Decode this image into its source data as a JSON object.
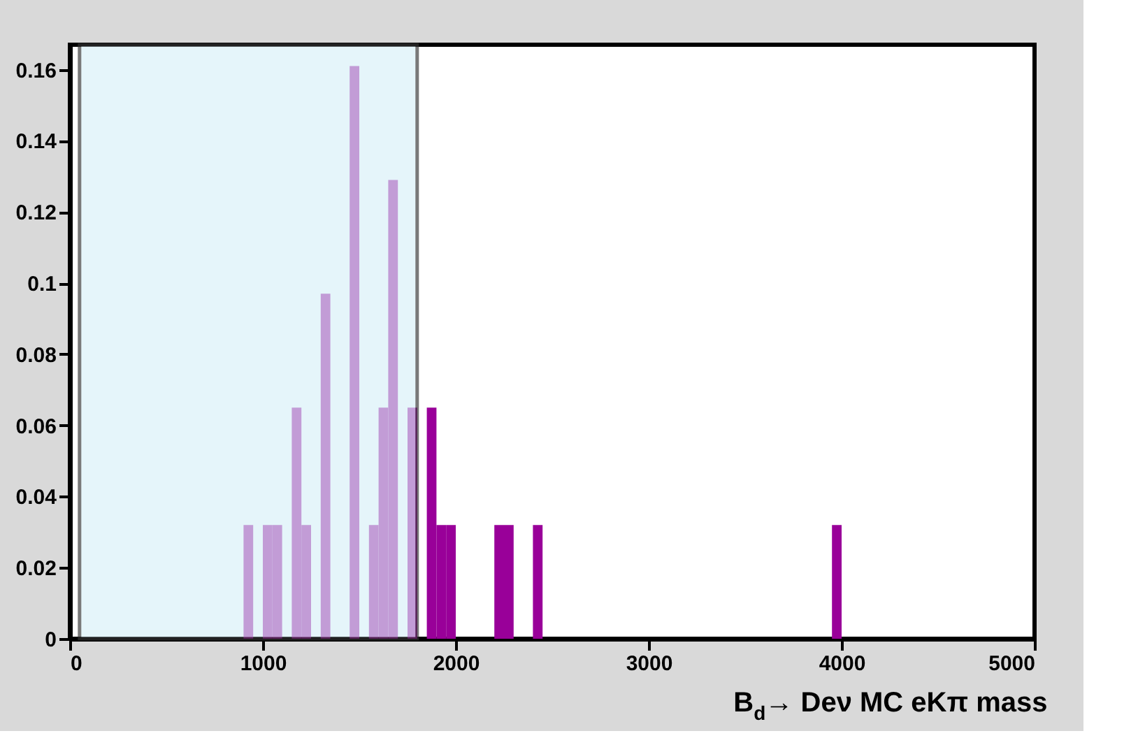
{
  "chart_data": {
    "type": "histogram",
    "xlabel": "B$_{d}$→ Deν MC eKπ mass",
    "bins": [
      0,
      50,
      100,
      150,
      200,
      250,
      300,
      350,
      400,
      450,
      500,
      550,
      600,
      650,
      700,
      750,
      800,
      850,
      900,
      950,
      1000,
      1050,
      1100,
      1150,
      1200,
      1250,
      1300,
      1350,
      1400,
      1450,
      1500,
      1550,
      1600,
      1650,
      1700,
      1750,
      1800,
      1850,
      1900,
      1950,
      2000,
      2050,
      2100,
      2150,
      2200,
      2250,
      2300,
      2350,
      2400,
      2450,
      2500,
      2550,
      2600,
      2650,
      2700,
      2750,
      2800,
      2850,
      2900,
      2950,
      3000,
      3050,
      3100,
      3150,
      3200,
      3250,
      3300,
      3350,
      3400,
      3450,
      3500,
      3550,
      3600,
      3650,
      3700,
      3750,
      3800,
      3850,
      3900,
      3950,
      4000,
      4050,
      4100,
      4150,
      4200,
      4250,
      4300,
      4350,
      4400,
      4450,
      4500,
      4550,
      4600,
      4650,
      4700,
      4750,
      4800,
      4850,
      4900,
      4950,
      5000
    ],
    "values": [
      0,
      0,
      0,
      0,
      0,
      0,
      0,
      0,
      0,
      0,
      0,
      0,
      0,
      0,
      0,
      0,
      0,
      0,
      0.032,
      0,
      0.032,
      0.032,
      0,
      0.065,
      0.032,
      0,
      0.097,
      0,
      0,
      0.161,
      0,
      0.032,
      0.065,
      0.129,
      0,
      0.065,
      0,
      0.065,
      0.032,
      0.032,
      0,
      0,
      0,
      0,
      0.032,
      0.032,
      0,
      0,
      0.032,
      0,
      0,
      0,
      0,
      0,
      0,
      0,
      0,
      0,
      0,
      0,
      0,
      0,
      0,
      0,
      0,
      0,
      0,
      0,
      0,
      0,
      0,
      0,
      0,
      0,
      0,
      0,
      0,
      0,
      0,
      0.032,
      0,
      0,
      0,
      0,
      0,
      0,
      0,
      0,
      0,
      0,
      0,
      0,
      0,
      0,
      0,
      0,
      0,
      0,
      0,
      0
    ],
    "color": "#990099",
    "xlim": [
      0,
      5000
    ],
    "xticks": [
      0,
      1000,
      2000,
      3000,
      4000,
      5000
    ],
    "ylim": [
      0,
      0.167
    ],
    "yticks": [
      0,
      0.02,
      0.04,
      0.06,
      0.08,
      0.1,
      0.12,
      0.14,
      0.16
    ],
    "bands": [
      {
        "axis": "x",
        "from": 50,
        "to": 1800,
        "color": "#d8f0f8"
      }
    ],
    "grid": false,
    "legend": false
  }
}
